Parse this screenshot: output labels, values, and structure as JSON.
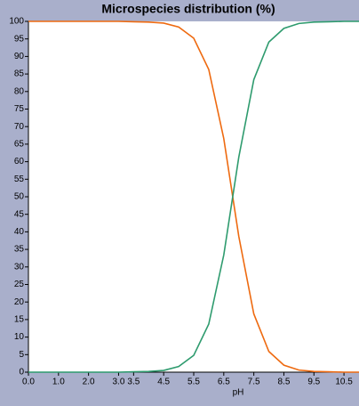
{
  "chart_data": {
    "type": "line",
    "title": "Microspecies distribution (%)",
    "x_label": "pH",
    "x": [
      0,
      0.5,
      1,
      1.5,
      2,
      2.5,
      3,
      3.5,
      4,
      4.5,
      5,
      5.5,
      6,
      6.5,
      7,
      7.5,
      8,
      8.5,
      9,
      9.5,
      10,
      10.5,
      11
    ],
    "series": [
      {
        "color": "#ee6a10",
        "values": [
          100,
          100,
          100,
          100,
          100,
          100,
          100,
          99.9,
          99.8,
          99.5,
          98.4,
          95.2,
          86.3,
          66.6,
          38.7,
          16.6,
          5.9,
          2.0,
          0.6,
          0.2,
          0.1,
          0,
          0
        ]
      },
      {
        "color": "#2e9b6e",
        "values": [
          0,
          0,
          0,
          0,
          0,
          0,
          0,
          0.1,
          0.2,
          0.5,
          1.6,
          4.8,
          13.7,
          33.4,
          61.3,
          83.4,
          94.1,
          98.0,
          99.4,
          99.8,
          99.9,
          100,
          100
        ]
      }
    ],
    "xlim": [
      0,
      11
    ],
    "xticks": [
      {
        "value": 0,
        "label": "0.0"
      },
      {
        "value": 1,
        "label": "1.0"
      },
      {
        "value": 2,
        "label": "2.0"
      },
      {
        "value": 3,
        "label": "3.0"
      },
      3.5,
      4.5,
      5.5,
      6.5,
      7.5,
      8.5,
      9.5,
      10.5
    ],
    "ylim": [
      0,
      100
    ],
    "yticks": [
      0,
      5,
      10,
      15,
      20,
      25,
      30,
      35,
      40,
      45,
      50,
      55,
      60,
      65,
      70,
      75,
      80,
      85,
      90,
      95,
      100
    ],
    "grid": false
  }
}
